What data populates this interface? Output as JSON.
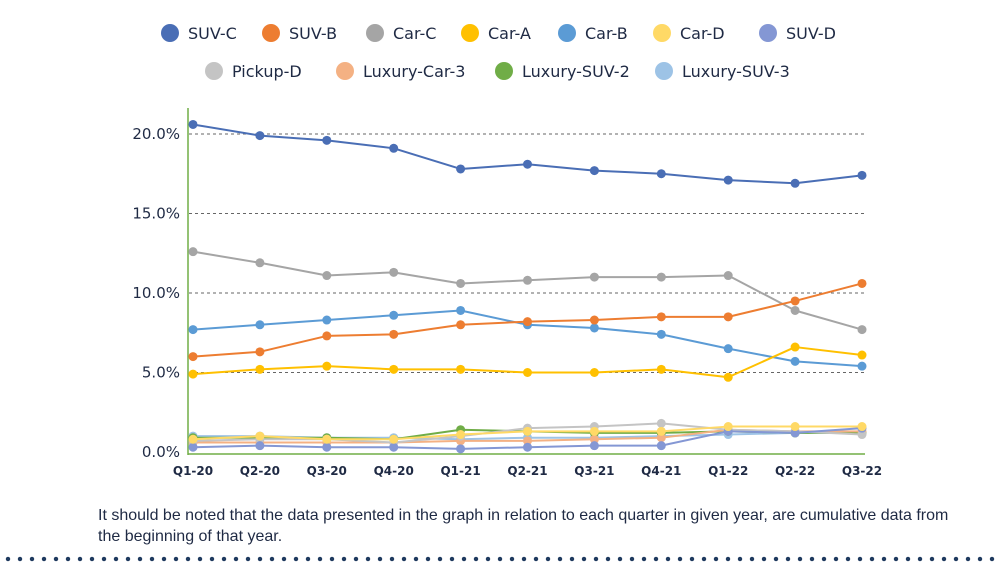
{
  "chart_data": {
    "type": "line",
    "categories": [
      "Q1-20",
      "Q2-20",
      "Q3-20",
      "Q4-20",
      "Q1-21",
      "Q2-21",
      "Q3-21",
      "Q4-21",
      "Q1-22",
      "Q2-22",
      "Q3-22"
    ],
    "y_ticks": [
      "0.0%",
      "5.0%",
      "10.0%",
      "15.0%",
      "20.0%"
    ],
    "ylim": [
      0,
      0.21
    ],
    "grid": "horizontal dashed at 5%, 10%, 15%, 20%",
    "legend_position": "top",
    "series": [
      {
        "name": "SUV-C",
        "color": "#4A6EB5",
        "values": [
          0.206,
          0.199,
          0.196,
          0.191,
          0.178,
          0.181,
          0.177,
          0.175,
          0.171,
          0.169,
          0.174
        ]
      },
      {
        "name": "SUV-B",
        "color": "#ED7D31",
        "values": [
          0.06,
          0.063,
          0.073,
          0.074,
          0.08,
          0.082,
          0.083,
          0.085,
          0.085,
          0.095,
          0.106
        ]
      },
      {
        "name": "Car-C",
        "color": "#A5A5A5",
        "values": [
          0.126,
          0.119,
          0.111,
          0.113,
          0.106,
          0.108,
          0.11,
          0.11,
          0.111,
          0.089,
          0.077
        ]
      },
      {
        "name": "Car-A",
        "color": "#FFC000",
        "values": [
          0.049,
          0.052,
          0.054,
          0.052,
          0.052,
          0.05,
          0.05,
          0.052,
          0.047,
          0.066,
          0.061
        ]
      },
      {
        "name": "Car-B",
        "color": "#5B9BD5",
        "values": [
          0.077,
          0.08,
          0.083,
          0.086,
          0.089,
          0.08,
          0.078,
          0.074,
          0.065,
          0.057,
          0.054
        ]
      },
      {
        "name": "Car-D",
        "color": "#FFD966",
        "values": [
          0.008,
          0.01,
          0.008,
          0.008,
          0.011,
          0.013,
          0.013,
          0.013,
          0.016,
          0.016,
          0.016
        ]
      },
      {
        "name": "SUV-D",
        "color": "#8497D4",
        "values": [
          0.003,
          0.004,
          0.003,
          0.003,
          0.002,
          0.003,
          0.004,
          0.004,
          0.013,
          0.012,
          0.015
        ]
      },
      {
        "name": "Pickup-D",
        "color": "#C4C4C4",
        "values": [
          0.007,
          0.008,
          0.008,
          0.006,
          0.01,
          0.015,
          0.016,
          0.018,
          0.014,
          0.013,
          0.011
        ]
      },
      {
        "name": "Luxury-Car-3",
        "color": "#F4B183",
        "values": [
          0.006,
          0.006,
          0.006,
          0.006,
          0.007,
          0.007,
          0.008,
          0.009,
          0.014,
          0.013,
          0.013
        ]
      },
      {
        "name": "Luxury-SUV-2",
        "color": "#70AD47",
        "values": [
          0.009,
          0.009,
          0.009,
          0.008,
          0.014,
          0.013,
          0.012,
          0.012,
          0.013,
          0.012,
          0.012
        ]
      },
      {
        "name": "Luxury-SUV-3",
        "color": "#9DC3E6",
        "values": [
          0.01,
          0.01,
          0.009,
          0.009,
          0.008,
          0.009,
          0.009,
          0.01,
          0.011,
          0.012,
          0.012
        ]
      }
    ]
  },
  "footnote": "It should be noted that the data presented in the graph in relation to each quarter in given year, are cumulative data from the beginning of that year."
}
